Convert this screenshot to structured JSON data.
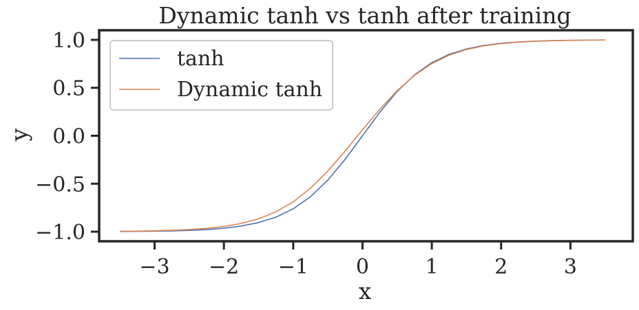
{
  "chart_data": {
    "type": "line",
    "title": "Dynamic tanh vs tanh after training",
    "xlabel": "x",
    "ylabel": "y",
    "xlim": [
      -3.8,
      3.9
    ],
    "ylim": [
      -1.1,
      1.1
    ],
    "xticks": [
      -3,
      -2,
      -1,
      0,
      1,
      2,
      3
    ],
    "xtick_labels": [
      "−3",
      "−2",
      "−1",
      "0",
      "1",
      "2",
      "3"
    ],
    "yticks": [
      1.0,
      0.5,
      0.0,
      -0.5,
      -1.0
    ],
    "ytick_labels": [
      "1.0",
      "0.5",
      "0.0",
      "−0.5",
      "−1.0"
    ],
    "grid": false,
    "legend_position": "top-left",
    "series": [
      {
        "name": "tanh",
        "color": "#4c72b0",
        "x": [
          -3.5,
          -3.25,
          -3,
          -2.75,
          -2.5,
          -2.25,
          -2,
          -1.75,
          -1.5,
          -1.25,
          -1,
          -0.75,
          -0.5,
          -0.25,
          0,
          0.25,
          0.5,
          0.75,
          1,
          1.25,
          1.5,
          1.75,
          2,
          2.25,
          2.5,
          2.75,
          3,
          3.25,
          3.5
        ],
        "y": [
          -0.998,
          -0.997,
          -0.995,
          -0.992,
          -0.987,
          -0.978,
          -0.964,
          -0.941,
          -0.905,
          -0.849,
          -0.762,
          -0.635,
          -0.462,
          -0.245,
          0.0,
          0.245,
          0.462,
          0.635,
          0.762,
          0.849,
          0.905,
          0.941,
          0.964,
          0.978,
          0.987,
          0.992,
          0.995,
          0.997,
          0.998
        ]
      },
      {
        "name": "Dynamic tanh",
        "color": "#dd8452",
        "x": [
          -3.5,
          -3.25,
          -3,
          -2.75,
          -2.5,
          -2.25,
          -2,
          -1.75,
          -1.5,
          -1.25,
          -1,
          -0.75,
          -0.5,
          -0.25,
          0,
          0.25,
          0.5,
          0.75,
          1,
          1.25,
          1.5,
          1.75,
          2,
          2.25,
          2.5,
          2.75,
          3,
          3.25,
          3.5
        ],
        "y": [
          -0.996,
          -0.994,
          -0.991,
          -0.986,
          -0.978,
          -0.966,
          -0.946,
          -0.914,
          -0.866,
          -0.793,
          -0.689,
          -0.547,
          -0.367,
          -0.159,
          0.061,
          0.276,
          0.47,
          0.63,
          0.752,
          0.84,
          0.899,
          0.937,
          0.961,
          0.976,
          0.985,
          0.991,
          0.995,
          0.997,
          0.998
        ]
      }
    ]
  }
}
